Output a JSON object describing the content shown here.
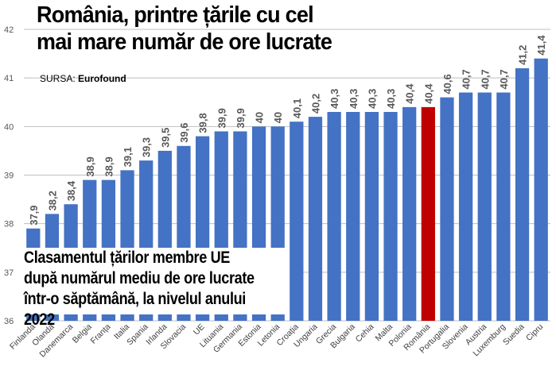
{
  "title": "România, printre țările cu cel mai mare număr de ore lucrate",
  "source": {
    "label": "SURSA:",
    "name": "Eurofound"
  },
  "subtitle": "Clasamentul țărilor membre UE după numărul mediu de ore lucrate într-o săptămână, la nivelul anului 2022",
  "colors": {
    "bar": "#4472C4",
    "highlight": "#C00000",
    "grid": "#bfbfbf",
    "label": "#595959"
  },
  "chart_data": {
    "type": "bar",
    "title": "România, printre țările cu cel mai mare număr de ore lucrate",
    "xlabel": "",
    "ylabel": "",
    "ylim": [
      36,
      42
    ],
    "yticks": [
      36,
      37,
      38,
      39,
      40,
      41,
      42
    ],
    "grid": true,
    "highlight": "România",
    "categories": [
      "Finlanda",
      "Olanda",
      "Danemarca",
      "Belgia",
      "Franța",
      "Italia",
      "Spania",
      "Irlanda",
      "Slovacia",
      "UE",
      "Lituania",
      "Germania",
      "Estonia",
      "Letonia",
      "Croația",
      "Ungaria",
      "Grecia",
      "Bulgaria",
      "Cehia",
      "Malta",
      "Polonia",
      "România",
      "Portugalia",
      "Slovenia",
      "Austria",
      "Luxemburg",
      "Suedia",
      "Cipru"
    ],
    "values": [
      37.9,
      38.2,
      38.4,
      38.9,
      38.9,
      39.1,
      39.3,
      39.5,
      39.6,
      39.8,
      39.9,
      39.9,
      40,
      40,
      40.1,
      40.2,
      40.3,
      40.3,
      40.3,
      40.3,
      40.4,
      40.4,
      40.6,
      40.7,
      40.7,
      40.7,
      41.2,
      41.4
    ],
    "value_labels": [
      "37,9",
      "38,2",
      "38,4",
      "38,9",
      "38,9",
      "39,1",
      "39,3",
      "39,5",
      "39,6",
      "39,8",
      "39,9",
      "39,9",
      "40",
      "40",
      "40,1",
      "40,2",
      "40,3",
      "40,3",
      "40,3",
      "40,3",
      "40,4",
      "40,4",
      "40,6",
      "40,7",
      "40,7",
      "40,7",
      "41,2",
      "41,4"
    ]
  }
}
